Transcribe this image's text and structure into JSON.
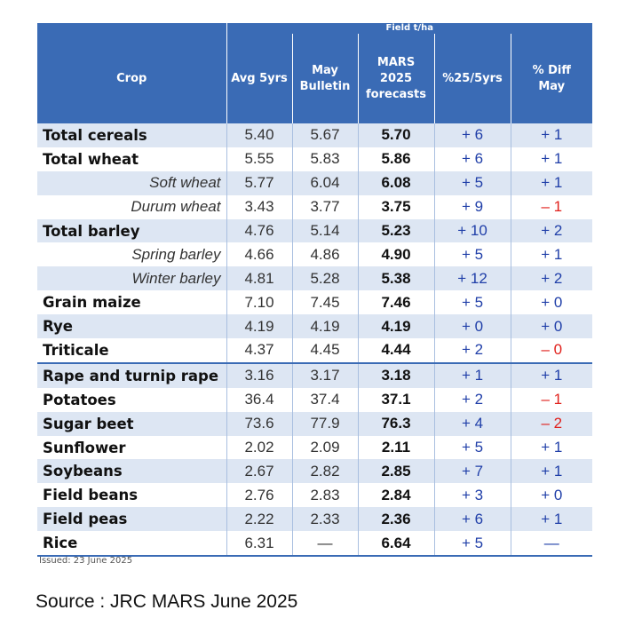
{
  "table": {
    "group_header": "Field t/ha",
    "headers": {
      "crop": "Crop",
      "avg": "Avg 5yrs",
      "may": [
        "May",
        "Bulletin"
      ],
      "mars": [
        "MARS",
        "2025",
        "forecasts"
      ],
      "pct": "%25/5yrs",
      "diff": [
        "% Diff",
        "May"
      ]
    },
    "rows": [
      {
        "crop": "Total cereals",
        "avg": "5.40",
        "may": "5.67",
        "mars": "5.70",
        "pct": "+ 6",
        "diff": "+ 1"
      },
      {
        "crop": "Total wheat",
        "avg": "5.55",
        "may": "5.83",
        "mars": "5.86",
        "pct": "+ 6",
        "diff": "+ 1"
      },
      {
        "crop": "Soft wheat",
        "avg": "5.77",
        "may": "6.04",
        "mars": "6.08",
        "pct": "+ 5",
        "diff": "+ 1"
      },
      {
        "crop": "Durum wheat",
        "avg": "3.43",
        "may": "3.77",
        "mars": "3.75",
        "pct": "+ 9",
        "diff": "– 1"
      },
      {
        "crop": "Total barley",
        "avg": "4.76",
        "may": "5.14",
        "mars": "5.23",
        "pct": "+ 10",
        "diff": "+ 2"
      },
      {
        "crop": "Spring barley",
        "avg": "4.66",
        "may": "4.86",
        "mars": "4.90",
        "pct": "+ 5",
        "diff": "+ 1"
      },
      {
        "crop": "Winter barley",
        "avg": "4.81",
        "may": "5.28",
        "mars": "5.38",
        "pct": "+ 12",
        "diff": "+ 2"
      },
      {
        "crop": "Grain maize",
        "avg": "7.10",
        "may": "7.45",
        "mars": "7.46",
        "pct": "+ 5",
        "diff": "+ 0"
      },
      {
        "crop": "Rye",
        "avg": "4.19",
        "may": "4.19",
        "mars": "4.19",
        "pct": "+ 0",
        "diff": "+ 0"
      },
      {
        "crop": "Triticale",
        "avg": "4.37",
        "may": "4.45",
        "mars": "4.44",
        "pct": "+ 2",
        "diff": "– 0"
      },
      {
        "crop": "Rape and turnip rape",
        "avg": "3.16",
        "may": "3.17",
        "mars": "3.18",
        "pct": "+ 1",
        "diff": "+ 1"
      },
      {
        "crop": "Potatoes",
        "avg": "36.4",
        "may": "37.4",
        "mars": "37.1",
        "pct": "+ 2",
        "diff": "– 1"
      },
      {
        "crop": "Sugar beet",
        "avg": "73.6",
        "may": "77.9",
        "mars": "76.3",
        "pct": "+ 4",
        "diff": "– 2"
      },
      {
        "crop": "Sunflower",
        "avg": "2.02",
        "may": "2.09",
        "mars": "2.11",
        "pct": "+ 5",
        "diff": "+ 1"
      },
      {
        "crop": "Soybeans",
        "avg": "2.67",
        "may": "2.82",
        "mars": "2.85",
        "pct": "+ 7",
        "diff": "+ 1"
      },
      {
        "crop": "Field beans",
        "avg": "2.76",
        "may": "2.83",
        "mars": "2.84",
        "pct": "+ 3",
        "diff": "+ 0"
      },
      {
        "crop": "Field peas",
        "avg": "2.22",
        "may": "2.33",
        "mars": "2.36",
        "pct": "+ 6",
        "diff": "+ 1"
      },
      {
        "crop": "Rice",
        "avg": "6.31",
        "may": "—",
        "mars": "6.64",
        "pct": "+ 5",
        "diff": "—"
      }
    ]
  },
  "issued": "Issued: 23 June 2025",
  "source": "Source : JRC MARS June 2025",
  "colors": {
    "header_bg": "#3a6bb5",
    "band": "#dde6f3",
    "positive": "#1f3ea8",
    "negative": "#e0201b"
  }
}
